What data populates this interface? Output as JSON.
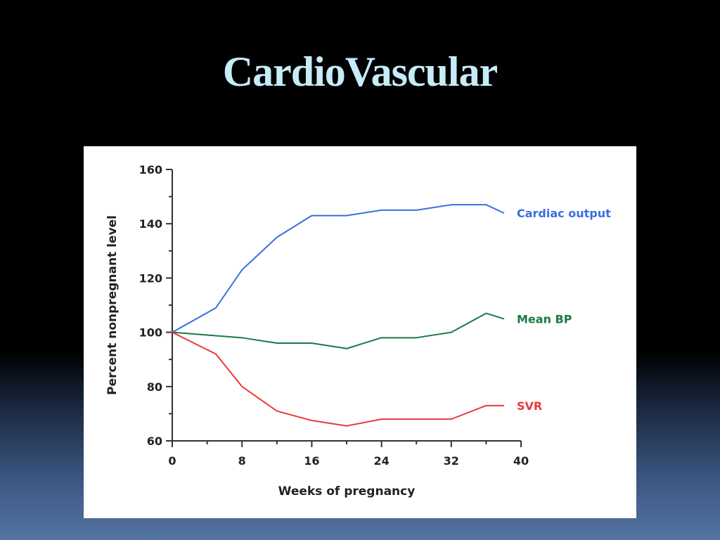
{
  "slide": {
    "title": "CardioVascular"
  },
  "chart_data": {
    "type": "line",
    "xlabel": "Weeks of pregnancy",
    "ylabel": "Percent nonpregnant level",
    "xlim": [
      0,
      40
    ],
    "ylim": [
      60,
      160
    ],
    "xticks": [
      0,
      8,
      16,
      24,
      32,
      40
    ],
    "xminor_step": 4,
    "yticks": [
      60,
      80,
      100,
      120,
      140,
      160
    ],
    "yminor_step": 10,
    "grid": false,
    "legend": "inline-right",
    "series": [
      {
        "name": "Cardiac output",
        "color": "#3a6fe0",
        "x": [
          0,
          5,
          8,
          12,
          16,
          20,
          24,
          28,
          32,
          36,
          38
        ],
        "y": [
          100,
          109,
          123,
          135,
          143,
          143,
          145,
          145,
          147,
          147,
          144
        ]
      },
      {
        "name": "Mean BP",
        "color": "#1a7a45",
        "x": [
          0,
          4,
          8,
          12,
          16,
          20,
          24,
          28,
          32,
          36,
          38
        ],
        "y": [
          100,
          99,
          98,
          96,
          96,
          94,
          98,
          98,
          100,
          107,
          105
        ]
      },
      {
        "name": "SVR",
        "color": "#e83a3a",
        "x": [
          0,
          5,
          8,
          12,
          16,
          20,
          24,
          28,
          32,
          36,
          38
        ],
        "y": [
          100,
          92,
          80,
          71,
          67.5,
          65.5,
          68,
          68,
          68,
          73,
          73
        ]
      }
    ]
  }
}
